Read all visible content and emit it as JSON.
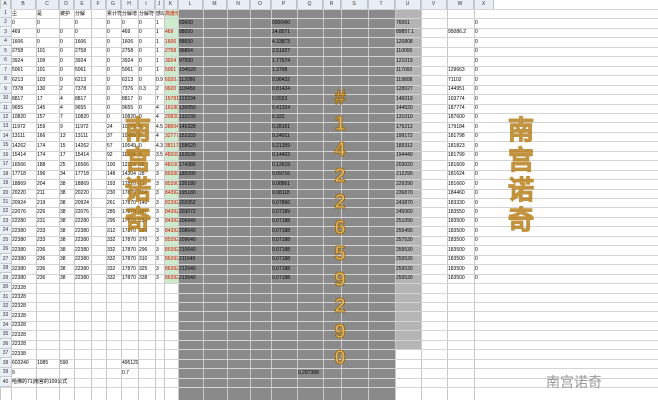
{
  "columns": [
    "A",
    "B",
    "C",
    "D",
    "E",
    "F",
    "G",
    "H",
    "I",
    "J",
    "K",
    "L",
    "M",
    "N",
    "O",
    "P",
    "Q",
    "R",
    "S",
    "T",
    "U",
    "V",
    "W",
    "X"
  ],
  "header_row": {
    "a": "编号",
    "b": "尘",
    "c": "是",
    "d": "被护",
    "e": "分解",
    "f": "",
    "g": "累计符",
    "h": "分解增",
    "i": "分解符号",
    "j": "感动",
    "k": "高度增",
    "l": "",
    "m": "",
    "n": "",
    "o": "",
    "p": "",
    "q": "",
    "r": "",
    "s": "",
    "t": "",
    "u": "",
    "v": "",
    "w": "",
    "x": ""
  },
  "rows": [
    [
      "所语5",
      "0",
      "0",
      "",
      "0",
      "",
      "0",
      "0",
      "0",
      "1",
      "",
      "69600",
      "",
      "",
      "",
      "00004/0",
      "",
      "",
      "",
      "",
      "76061",
      "",
      "",
      "0"
    ],
    [
      "所语1",
      "469",
      "0",
      "0",
      "0",
      "",
      "0",
      "469",
      "0",
      "1",
      "469",
      "88050",
      "",
      "",
      "",
      "14.8571",
      "",
      "",
      "",
      "",
      "89857.1",
      "",
      "95086.2",
      "0"
    ],
    [
      "所语2",
      "1606",
      "0",
      "0",
      "1606",
      "",
      "0",
      "1606",
      "0",
      "1",
      "1606",
      "88650",
      "",
      "",
      "",
      "4.33873",
      "",
      "",
      "",
      "",
      "120808",
      "",
      "",
      "0"
    ],
    [
      "所语3",
      "2758",
      "101",
      "0",
      "2758",
      "",
      "0",
      "2758",
      "0",
      "1",
      "2758",
      "96854",
      "",
      "",
      "",
      "2.51927",
      "",
      "",
      "",
      "",
      "110000",
      "",
      "",
      "0"
    ],
    [
      "所语4",
      "3924",
      "109",
      "0",
      "3924",
      "",
      "0",
      "3924",
      "0",
      "1",
      "3924",
      "97550",
      "",
      "",
      "",
      "1.77574",
      "",
      "",
      "",
      "",
      "121019",
      "",
      "",
      "0"
    ],
    [
      "所语5",
      "5061",
      "101",
      "0",
      "5061",
      "",
      "0",
      "5061",
      "0",
      "1",
      "5061",
      "104520",
      "",
      "",
      "",
      "1.3768",
      "",
      "",
      "",
      "",
      "117092",
      "",
      "129663",
      "0"
    ],
    [
      "所语6",
      "6213",
      "103",
      "0",
      "6213",
      "",
      "0",
      "6213",
      "0",
      "0.9",
      "6920.8",
      "112080",
      "",
      "",
      "",
      "0.98432",
      "",
      "",
      "",
      "",
      "119808",
      "",
      "71102",
      "0"
    ],
    [
      "所语7",
      "7378",
      "130",
      "2",
      "7378",
      "",
      "0",
      "7376",
      "0.3",
      "2",
      "9920",
      "118450",
      "",
      "",
      "",
      "0.81424",
      "",
      "",
      "",
      "",
      "128027",
      "",
      "144951",
      "0"
    ],
    [
      "所语8",
      "8817",
      "17",
      "4",
      "8817",
      "",
      "0",
      "8817",
      "0",
      "7",
      "15781",
      "123234",
      "",
      "",
      "",
      "0.5553",
      "",
      "",
      "",
      "",
      "146019",
      "",
      "103774",
      "0"
    ],
    [
      "所语9",
      "9655",
      "145",
      "4",
      "9655",
      "",
      "0",
      "9655",
      "0",
      "4",
      "16180",
      "130050",
      "",
      "",
      "",
      "0.41324",
      "",
      "",
      "",
      "",
      "144520",
      "",
      "187774",
      "0"
    ],
    [
      "所语10",
      "10820",
      "157",
      "7",
      "10820",
      "",
      "0",
      "10820",
      "0",
      "4",
      "20820",
      "133230",
      "",
      "",
      "",
      "0.322",
      "",
      "",
      "",
      "",
      "131010",
      "",
      "187600",
      "0"
    ],
    [
      "所语11",
      "11972",
      "159",
      "9",
      "11972",
      "",
      "24",
      "10775",
      "0",
      "4.5",
      "28604",
      "146328",
      "",
      "",
      "",
      "0.28161",
      "",
      "",
      "",
      "",
      "175212",
      "",
      "179184",
      "0"
    ],
    [
      "所语12",
      "13111",
      "166",
      "13",
      "13111",
      "",
      "37",
      "10489",
      "0",
      "4",
      "32777",
      "152333",
      "",
      "",
      "",
      "0.24011",
      "",
      "",
      "",
      "",
      "199172",
      "",
      "181798",
      "0"
    ],
    [
      "所语13",
      "14262",
      "174",
      "15",
      "14262",
      "",
      "57",
      "10549",
      "0",
      "4.3",
      "38117",
      "158620",
      "",
      "",
      "",
      "0.21359",
      "",
      "",
      "",
      "",
      "189312",
      "",
      "181823",
      "0"
    ],
    [
      "所语14",
      "15414",
      "174",
      "17",
      "15414",
      "",
      "92",
      "11234",
      "0",
      "3.5",
      "48209",
      "163636",
      "",
      "",
      "",
      "0.14402",
      "",
      "",
      "",
      "",
      "194440",
      "",
      "181799",
      "0"
    ],
    [
      "所语15",
      "16566",
      "188",
      "25",
      "16566",
      "",
      "100",
      "12253",
      "25",
      "3",
      "48100",
      "174386",
      "",
      "",
      "",
      "0.12619",
      "",
      "",
      "",
      "",
      "203020",
      "",
      "181609",
      "0"
    ],
    [
      "所语16",
      "17718",
      "196",
      "34",
      "17718",
      "",
      "148",
      "14304",
      "28",
      "3",
      "89390",
      "185090",
      "",
      "",
      "",
      "0.09716",
      "",
      "",
      "",
      "",
      "212290",
      "",
      "181624",
      "0"
    ],
    [
      "所语17",
      "18869",
      "204",
      "38",
      "18869",
      "",
      "193",
      "17870",
      "72",
      "3",
      "85390",
      "195180",
      "",
      "",
      "",
      "0.08861",
      "",
      "",
      "",
      "",
      "229290",
      "",
      "181660",
      "0"
    ],
    [
      "所语18",
      "20220",
      "211",
      "38",
      "20220",
      "",
      "230",
      "17870",
      "114",
      "3",
      "84392",
      "195180",
      "",
      "",
      "",
      "0.08118",
      "",
      "",
      "",
      "",
      "236870",
      "",
      "184460",
      "0"
    ],
    [
      "所语19",
      "20924",
      "219",
      "38",
      "20924",
      "",
      "261",
      "17870",
      "140",
      "3",
      "82392",
      "202052",
      "",
      "",
      "",
      "0.07866",
      "",
      "",
      "",
      "",
      "243870",
      "",
      "183330",
      "0"
    ],
    [
      "所语20",
      "22076",
      "226",
      "38",
      "22076",
      "",
      "285",
      "17870",
      "197",
      "3",
      "84392",
      "203072",
      "",
      "",
      "",
      "0.07189",
      "",
      "",
      "",
      "",
      "245060",
      "",
      "183550",
      "0"
    ],
    [
      "所语21",
      "22280",
      "231",
      "38",
      "22280",
      "",
      "295",
      "17870",
      "224",
      "3",
      "84392",
      "206640",
      "",
      "",
      "",
      "0.07188",
      "",
      "",
      "",
      "",
      "251090",
      "",
      "183500",
      "0"
    ],
    [
      "所语22",
      "22380",
      "233",
      "38",
      "22380",
      "",
      "312",
      "17870",
      "256",
      "3",
      "84392",
      "208640",
      "",
      "",
      "",
      "0.07188",
      "",
      "",
      "",
      "",
      "255490",
      "",
      "183500",
      "0"
    ],
    [
      "所语23",
      "22380",
      "233",
      "38",
      "22380",
      "",
      "332",
      "17870",
      "270",
      "3",
      "85392",
      "209640",
      "",
      "",
      "",
      "0.07188",
      "",
      "",
      "",
      "",
      "257530",
      "",
      "183500",
      "0"
    ],
    [
      "所语24",
      "22380",
      "236",
      "38",
      "22380",
      "",
      "332",
      "17870",
      "296",
      "3",
      "85392",
      "210640",
      "",
      "",
      "",
      "0.07188",
      "",
      "",
      "",
      "",
      "259530",
      "",
      "183500",
      "0"
    ],
    [
      "所语25",
      "22380",
      "236",
      "38",
      "22380",
      "",
      "332",
      "17870",
      "310",
      "3",
      "86392",
      "211640",
      "",
      "",
      "",
      "0.07188",
      "",
      "",
      "",
      "",
      "259530",
      "",
      "183500",
      "0"
    ],
    [
      "所语26",
      "22380",
      "236",
      "38",
      "22380",
      "",
      "332",
      "17870",
      "325",
      "3",
      "86392",
      "212640",
      "",
      "",
      "",
      "0.07188",
      "",
      "",
      "",
      "",
      "259530",
      "",
      "183500",
      "0"
    ],
    [
      "所语27",
      "22380",
      "236",
      "38",
      "22380",
      "",
      "332",
      "17870",
      "338",
      "3",
      "86392",
      "213640",
      "",
      "",
      "",
      "0.07188",
      "",
      "",
      "",
      "",
      "259530",
      "",
      "183500",
      "0"
    ],
    [
      "所语28",
      "22328",
      "",
      "",
      "",
      "",
      "",
      "",
      "",
      "",
      "",
      "",
      "",
      "",
      "",
      "",
      "",
      "",
      "",
      "",
      "",
      "",
      "",
      ""
    ],
    [
      "所语29",
      "22328",
      "",
      "",
      "",
      "",
      "",
      "",
      "",
      "",
      "",
      "",
      "",
      "",
      "",
      "",
      "",
      "",
      "",
      "",
      "",
      "",
      "",
      ""
    ],
    [
      "所语30",
      "22328",
      "",
      "",
      "",
      "",
      "",
      "",
      "",
      "",
      "",
      "",
      "",
      "",
      "",
      "",
      "",
      "",
      "",
      "",
      "",
      "",
      "",
      ""
    ],
    [
      "所语31",
      "22328",
      "",
      "",
      "",
      "",
      "",
      "",
      "",
      "",
      "",
      "",
      "",
      "",
      "",
      "",
      "",
      "",
      "",
      "",
      "",
      "",
      "",
      ""
    ],
    [
      "所语32",
      "22328",
      "",
      "",
      "",
      "",
      "",
      "",
      "",
      "",
      "",
      "",
      "",
      "",
      "",
      "",
      "",
      "",
      "",
      "",
      "",
      "",
      "",
      ""
    ],
    [
      "所语33",
      "22328",
      "",
      "",
      "",
      "",
      "",
      "",
      "",
      "",
      "",
      "",
      "",
      "",
      "",
      "",
      "",
      "",
      "",
      "",
      "",
      "",
      "",
      ""
    ],
    [
      "所语34",
      "22328",
      "",
      "",
      "",
      "",
      "",
      "",
      "",
      "",
      "",
      "",
      "",
      "",
      "",
      "",
      "",
      "",
      "",
      "",
      "",
      "",
      "",
      ""
    ],
    [
      "所语35",
      "22338",
      "",
      "",
      "",
      "",
      "",
      "",
      "",
      "",
      "",
      "",
      "",
      "",
      "",
      "",
      "",
      "",
      "",
      "",
      "",
      "",
      "",
      ""
    ]
  ],
  "total_row": [
    "",
    "603240",
    "1085",
    "590",
    "",
    "",
    "",
    "495129"
  ],
  "extra_row": {
    "b": "9",
    "h": "0.7",
    "q": "0.287388"
  },
  "footer_note": "哈佛的71|南宫的109公式",
  "watermark": {
    "left": "南宫诺奇",
    "right": "南宫诺奇",
    "digits": "#1422659290",
    "logo_text": "南宫诺奇"
  },
  "colors": {
    "gray": "#8a8a8a",
    "header": "#e9eef5",
    "accent_red": "#d40000",
    "green": "#cdeccd"
  }
}
